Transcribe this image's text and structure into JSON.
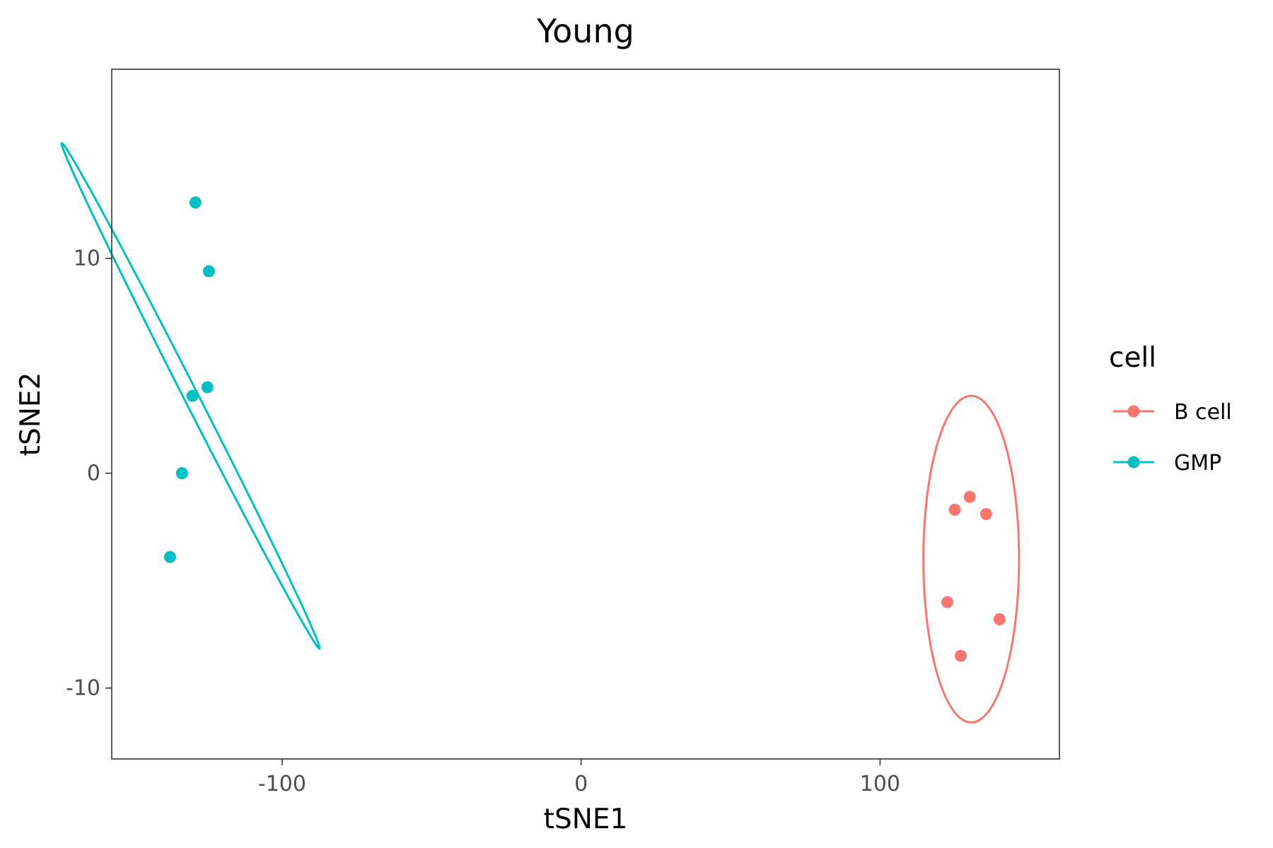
{
  "chart_data": {
    "type": "scatter",
    "title": "Young",
    "xlabel": "tSNE1",
    "ylabel": "tSNE2",
    "xlim": [
      -157,
      160
    ],
    "ylim": [
      -13.3,
      18.8
    ],
    "x_ticks": [
      -100,
      0,
      100
    ],
    "y_ticks": [
      -10,
      0,
      10
    ],
    "grid": false,
    "legend": {
      "title": "cell",
      "placement": "right"
    },
    "series": [
      {
        "name": "B cell",
        "color": "#F8766D",
        "points": [
          {
            "x": 130,
            "y": -1.1
          },
          {
            "x": 125,
            "y": -1.7
          },
          {
            "x": 135.5,
            "y": -1.9
          },
          {
            "x": 122.5,
            "y": -6.0
          },
          {
            "x": 140,
            "y": -6.8
          },
          {
            "x": 127,
            "y": -8.5
          }
        ],
        "ellipse": {
          "cx": 130.5,
          "cy": -4.0,
          "rx": 16,
          "ry": 7.6,
          "angle_deg": 0
        }
      },
      {
        "name": "GMP",
        "color": "#00BFC4",
        "points": [
          {
            "x": -129,
            "y": 12.6
          },
          {
            "x": -124.5,
            "y": 9.4
          },
          {
            "x": -125,
            "y": 4.0
          },
          {
            "x": -130,
            "y": 3.6
          },
          {
            "x": -133.5,
            "y": 0.0
          },
          {
            "x": -137.5,
            "y": -3.9
          }
        ],
        "ellipse": {
          "cx": -130.6,
          "cy": 3.6,
          "rx": 2.4,
          "ry": 13.2,
          "angle_deg": -27
        }
      }
    ]
  }
}
